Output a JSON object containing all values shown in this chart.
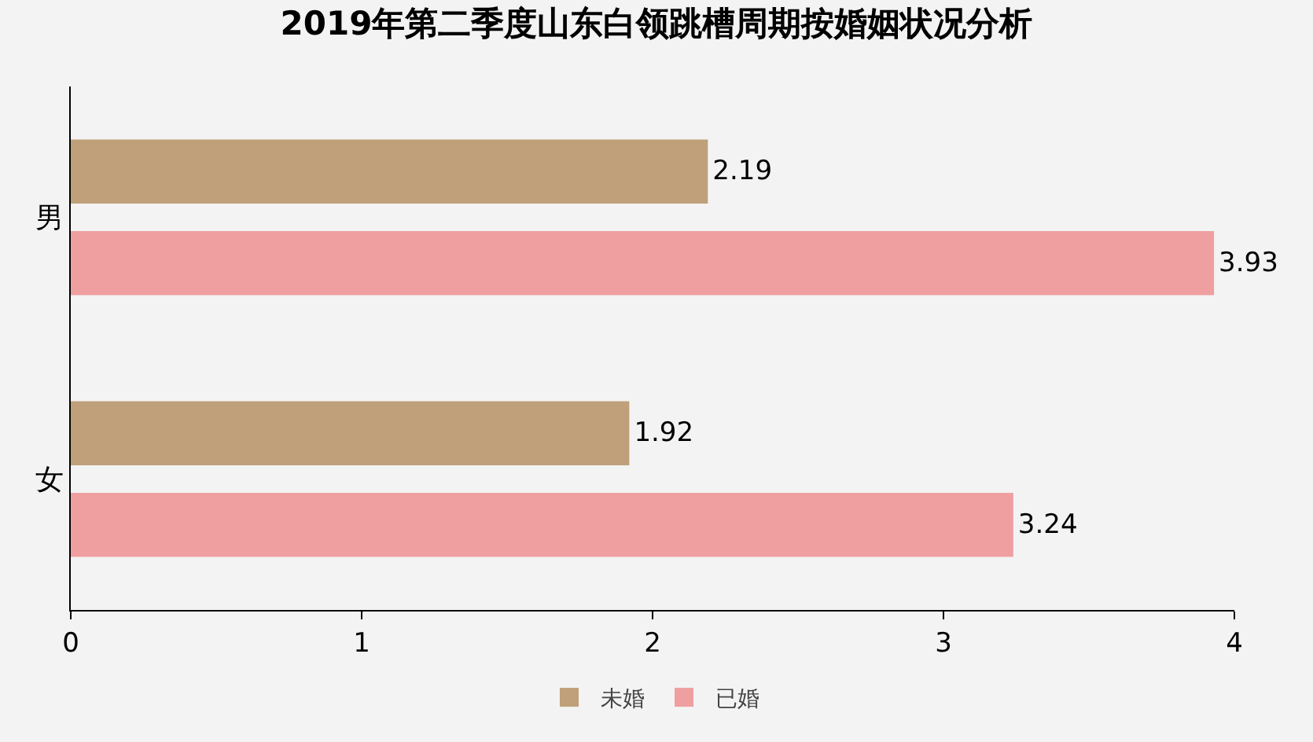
{
  "chart_data": {
    "type": "bar",
    "title": "2019年第二季度山东白领跳槽周期按婚姻状况分析",
    "orientation": "horizontal",
    "categories": [
      "男",
      "女"
    ],
    "series": [
      {
        "name": "未婚",
        "color": "#bfa07a",
        "values": [
          2.19,
          1.92
        ]
      },
      {
        "name": "已婚",
        "color": "#ef9f9f",
        "values": [
          3.93,
          3.24
        ]
      }
    ],
    "xlim": [
      0,
      4
    ],
    "xticks": [
      0,
      1,
      2,
      3,
      4
    ],
    "data_labels": true,
    "legend": "bottom",
    "grid": false
  }
}
